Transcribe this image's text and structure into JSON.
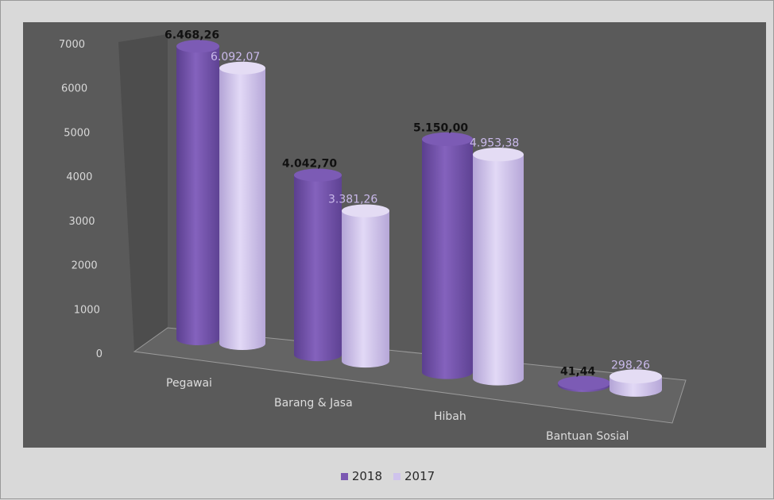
{
  "chart_data": {
    "type": "bar",
    "style": "3d-cylinder",
    "categories": [
      "Pegawai",
      "Barang & Jasa",
      "Hibah",
      "Bantuan Sosial"
    ],
    "series": [
      {
        "name": "2018",
        "values": [
          6468.26,
          4042.7,
          5150.0,
          41.44
        ],
        "labels": [
          "6.468,26",
          "4.042,70",
          "5.150,00",
          "41,44"
        ],
        "color": "#7b58b2"
      },
      {
        "name": "2017",
        "values": [
          6092.07,
          3381.26,
          4953.38,
          298.26
        ],
        "labels": [
          "6.092,07",
          "3.381,26",
          "4.953,38",
          "298,26"
        ],
        "color": "#cfc3ec"
      }
    ],
    "yticks": [
      "0",
      "1000",
      "2000",
      "3000",
      "4000",
      "5000",
      "6000",
      "7000"
    ],
    "ylim": [
      0,
      7000
    ],
    "grid": false,
    "legend": "bottom",
    "colors": {
      "plot_background": "#5a5a5a",
      "floor": "#626262",
      "back_wall": "#4d4d4d"
    }
  }
}
